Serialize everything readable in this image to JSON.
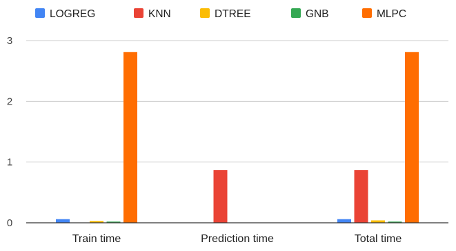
{
  "chart_data": {
    "type": "bar",
    "title": "",
    "xlabel": "",
    "ylabel": "",
    "categories": [
      "Train time",
      "Prediction time",
      "Total time"
    ],
    "series": [
      {
        "name": "LOGREG",
        "color": "#4285f4",
        "values": [
          0.06,
          0.0,
          0.06
        ]
      },
      {
        "name": "KNN",
        "color": "#ea4335",
        "values": [
          0.0,
          0.87,
          0.87
        ]
      },
      {
        "name": "DTREE",
        "color": "#fbbc04",
        "values": [
          0.03,
          0.0,
          0.04
        ]
      },
      {
        "name": "GNB",
        "color": "#34a853",
        "values": [
          0.02,
          0.0,
          0.02
        ]
      },
      {
        "name": "MLPC",
        "color": "#ff6d01",
        "values": [
          2.81,
          0.0,
          2.81
        ]
      }
    ],
    "ylim": [
      0,
      3
    ],
    "yticks": [
      "0",
      "1",
      "2",
      "3"
    ],
    "grid": true,
    "legend_position": "top-left"
  }
}
